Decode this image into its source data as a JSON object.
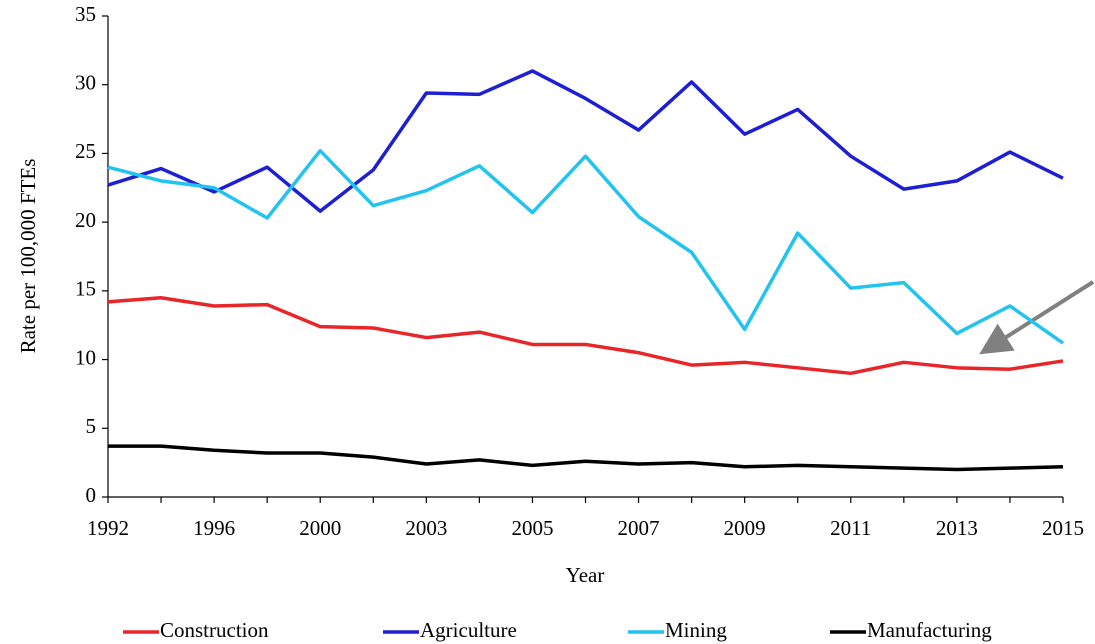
{
  "chart_data": {
    "type": "line",
    "x_label": "Year",
    "y_label": "Rate per 100,000 FTEs",
    "categories": [
      "1992",
      null,
      "1996",
      null,
      "2000",
      null,
      "2003",
      null,
      "2005",
      null,
      "2007",
      null,
      "2009",
      null,
      "2011",
      null,
      "2013",
      null,
      "2015"
    ],
    "series": [
      {
        "name": "Construction",
        "color": "#e8262a",
        "values": [
          14.2,
          14.5,
          13.9,
          14.0,
          12.4,
          12.3,
          11.6,
          12.0,
          11.1,
          11.1,
          10.5,
          9.6,
          9.8,
          9.4,
          9.0,
          9.8,
          9.4,
          9.3,
          9.9
        ]
      },
      {
        "name": "Agriculture",
        "color": "#1e1ed2",
        "values": [
          22.7,
          23.9,
          22.2,
          24.0,
          20.8,
          23.8,
          29.4,
          29.3,
          31.0,
          29.0,
          26.7,
          30.2,
          26.4,
          28.2,
          24.8,
          22.4,
          23.0,
          25.1,
          23.2
        ]
      },
      {
        "name": "Mining",
        "color": "#22c3ee",
        "values": [
          24.0,
          23.0,
          22.5,
          20.3,
          25.2,
          21.2,
          22.3,
          24.1,
          20.7,
          24.8,
          20.4,
          17.8,
          12.2,
          19.2,
          15.2,
          15.6,
          11.9,
          13.9,
          11.2
        ]
      },
      {
        "name": "Manufacturing",
        "color": "#000000",
        "values": [
          3.7,
          3.7,
          3.4,
          3.2,
          3.2,
          2.9,
          2.4,
          2.7,
          2.3,
          2.6,
          2.4,
          2.5,
          2.2,
          2.3,
          2.2,
          2.1,
          2.0,
          2.1,
          2.2
        ]
      }
    ],
    "ylim": [
      0,
      35
    ],
    "yticks": [
      0,
      5,
      10,
      15,
      20,
      25,
      30,
      35
    ],
    "grid": false,
    "legend": "bottom"
  }
}
